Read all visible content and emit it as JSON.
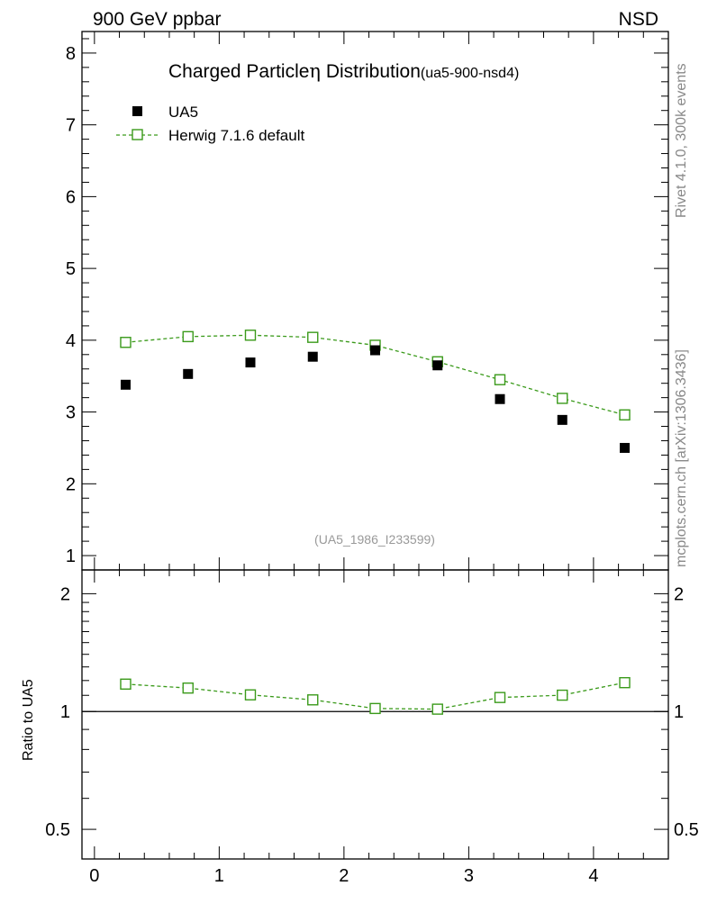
{
  "header": {
    "left": "900 GeV ppbar",
    "right": "NSD"
  },
  "side_text": {
    "rivet": "Rivet 4.1.0,  300k events",
    "mcplots": "mcplots.cern.ch [arXiv:1306.3436]"
  },
  "colors": {
    "data": "#000000",
    "mc": "#3a9a1a",
    "axis": "#000000",
    "watermark": "#999999",
    "side": "#888888"
  },
  "chart_data": [
    {
      "type": "scatter",
      "panel": "main",
      "title": "Charged Particle",
      "title_symbol": "η",
      "title_rest": " Distribution",
      "title_tag": "(ua5-900-nsd4)",
      "watermark": "(UA5_1986_I233599)",
      "xlim": [
        -0.1,
        4.6
      ],
      "ylim": [
        0.8,
        8.3
      ],
      "yticks": [
        "1",
        "2",
        "3",
        "4",
        "5",
        "6",
        "7",
        "8"
      ],
      "ytick_values": [
        1,
        2,
        3,
        4,
        5,
        6,
        7,
        8
      ],
      "legend": [
        "UA5",
        "Herwig 7.1.6 default"
      ],
      "legend_position": "top-left",
      "series": [
        {
          "name": "UA5",
          "marker": "filled-square",
          "x": [
            0.25,
            0.75,
            1.25,
            1.75,
            2.25,
            2.75,
            3.25,
            3.75,
            4.25
          ],
          "y": [
            3.38,
            3.53,
            3.69,
            3.77,
            3.86,
            3.65,
            3.18,
            2.89,
            2.5
          ]
        },
        {
          "name": "Herwig 7.1.6 default",
          "marker": "open-square",
          "line": "dashed",
          "x": [
            0.25,
            0.75,
            1.25,
            1.75,
            2.25,
            2.75,
            3.25,
            3.75,
            4.25
          ],
          "y": [
            3.97,
            4.05,
            4.07,
            4.04,
            3.93,
            3.7,
            3.45,
            3.19,
            2.96
          ]
        }
      ]
    },
    {
      "type": "scatter",
      "panel": "ratio",
      "ylabel": "Ratio to UA5",
      "xlim": [
        -0.1,
        4.6
      ],
      "ylim": [
        0.42,
        2.3
      ],
      "yscale": "log",
      "yticks": [
        "0.5",
        "1",
        "2"
      ],
      "ytick_values": [
        0.5,
        1,
        2
      ],
      "xticks": [
        "0",
        "1",
        "2",
        "3",
        "4"
      ],
      "xtick_values": [
        0,
        1,
        2,
        3,
        4
      ],
      "reference_line": 1,
      "series": [
        {
          "name": "Herwig 7.1.6 default",
          "marker": "open-square",
          "line": "dashed",
          "x": [
            0.25,
            0.75,
            1.25,
            1.75,
            2.25,
            2.75,
            3.25,
            3.75,
            4.25
          ],
          "y": [
            1.175,
            1.148,
            1.103,
            1.071,
            1.018,
            1.014,
            1.086,
            1.101,
            1.185
          ]
        }
      ]
    }
  ]
}
